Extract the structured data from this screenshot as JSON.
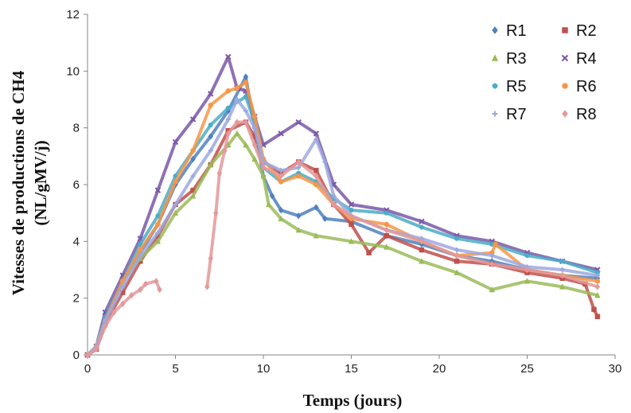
{
  "chart_data": {
    "type": "scatter",
    "xlabel": "Temps (jours)",
    "ylabel": "Vitesses de productions de CH4",
    "ylabel_unit": "(NL/gMV/j)",
    "xlim": [
      0,
      30
    ],
    "ylim": [
      0,
      12
    ],
    "xticks": [
      "0",
      "5",
      "10",
      "15",
      "20",
      "25",
      "30"
    ],
    "yticks": [
      "0",
      "2",
      "4",
      "6",
      "8",
      "10",
      "12"
    ],
    "grid": false,
    "legend_position": "top-right",
    "legend_columns": 2,
    "series": [
      {
        "name": "R1",
        "color": "#4f81bd",
        "marker": "diamond",
        "points": [
          [
            0,
            0
          ],
          [
            0.5,
            0.3
          ],
          [
            1,
            1.2
          ],
          [
            2,
            2.6
          ],
          [
            3,
            3.6
          ],
          [
            4,
            4.6
          ],
          [
            5,
            6
          ],
          [
            6,
            6.9
          ],
          [
            7,
            7.7
          ],
          [
            8,
            8.6
          ],
          [
            9,
            9.8
          ],
          [
            9.5,
            8
          ],
          [
            10,
            6.3
          ],
          [
            10.5,
            5.6
          ],
          [
            11,
            5.1
          ],
          [
            12,
            4.9
          ],
          [
            13,
            5.2
          ],
          [
            13.5,
            4.8
          ],
          [
            15,
            4.7
          ],
          [
            17,
            4.2
          ],
          [
            19,
            3.9
          ],
          [
            21,
            3.5
          ],
          [
            23,
            3.3
          ],
          [
            25,
            3
          ],
          [
            27,
            2.8
          ],
          [
            29,
            2.7
          ]
        ]
      },
      {
        "name": "R2",
        "color": "#c0504d",
        "marker": "square",
        "points": [
          [
            0,
            0
          ],
          [
            0.5,
            0.2
          ],
          [
            1,
            1.1
          ],
          [
            2,
            2.2
          ],
          [
            3,
            3.3
          ],
          [
            4,
            4.2
          ],
          [
            5,
            5.3
          ],
          [
            6,
            5.8
          ],
          [
            7,
            6.7
          ],
          [
            8,
            7.9
          ],
          [
            9,
            8.2
          ],
          [
            9.5,
            7.7
          ],
          [
            10,
            6.8
          ],
          [
            11,
            6.4
          ],
          [
            12,
            6.8
          ],
          [
            13,
            6.5
          ],
          [
            14,
            5.3
          ],
          [
            15,
            4.6
          ],
          [
            16,
            3.6
          ],
          [
            17,
            4.2
          ],
          [
            19,
            3.7
          ],
          [
            21,
            3.3
          ],
          [
            23,
            3.2
          ],
          [
            25,
            2.9
          ],
          [
            27,
            2.7
          ],
          [
            28.3,
            2.5
          ],
          [
            28.8,
            1.6
          ],
          [
            29,
            1.35
          ]
        ]
      },
      {
        "name": "R3",
        "color": "#9bbb59",
        "marker": "triangle",
        "points": [
          [
            0,
            0
          ],
          [
            0.5,
            0.3
          ],
          [
            1,
            1.3
          ],
          [
            2,
            2.6
          ],
          [
            3,
            3.4
          ],
          [
            4,
            4
          ],
          [
            5,
            5
          ],
          [
            6,
            5.6
          ],
          [
            7,
            6.7
          ],
          [
            8,
            7.4
          ],
          [
            8.5,
            7.8
          ],
          [
            9,
            7.4
          ],
          [
            9.5,
            6.9
          ],
          [
            10,
            6.3
          ],
          [
            10.3,
            5.3
          ],
          [
            11,
            4.8
          ],
          [
            12,
            4.4
          ],
          [
            13,
            4.2
          ],
          [
            15,
            4
          ],
          [
            17,
            3.8
          ],
          [
            19,
            3.3
          ],
          [
            21,
            2.9
          ],
          [
            23,
            2.3
          ],
          [
            25,
            2.6
          ],
          [
            27,
            2.4
          ],
          [
            29,
            2.1
          ]
        ]
      },
      {
        "name": "R4",
        "color": "#7a58a8",
        "marker": "x",
        "points": [
          [
            0,
            0
          ],
          [
            0.5,
            0.3
          ],
          [
            1,
            1.5
          ],
          [
            2,
            2.8
          ],
          [
            3,
            4.1
          ],
          [
            4,
            5.8
          ],
          [
            5,
            7.5
          ],
          [
            6,
            8.3
          ],
          [
            7,
            9.2
          ],
          [
            8,
            10.5
          ],
          [
            8.5,
            9.4
          ],
          [
            9,
            9.3
          ],
          [
            9.5,
            8.4
          ],
          [
            10,
            7.4
          ],
          [
            11,
            7.8
          ],
          [
            12,
            8.2
          ],
          [
            13,
            7.8
          ],
          [
            14,
            6
          ],
          [
            15,
            5.3
          ],
          [
            17,
            5.1
          ],
          [
            19,
            4.7
          ],
          [
            21,
            4.2
          ],
          [
            23,
            4
          ],
          [
            25,
            3.6
          ],
          [
            27,
            3.3
          ],
          [
            29,
            3
          ]
        ]
      },
      {
        "name": "R5",
        "color": "#4bacc6",
        "marker": "star",
        "points": [
          [
            0,
            0
          ],
          [
            0.5,
            0.3
          ],
          [
            1,
            1.3
          ],
          [
            2,
            2.6
          ],
          [
            3,
            3.9
          ],
          [
            4,
            4.9
          ],
          [
            5,
            6.3
          ],
          [
            6,
            7.2
          ],
          [
            7,
            8.1
          ],
          [
            8,
            8.7
          ],
          [
            9,
            9.1
          ],
          [
            9.5,
            8.2
          ],
          [
            10,
            6.6
          ],
          [
            11,
            6.1
          ],
          [
            12,
            6.4
          ],
          [
            13,
            6.1
          ],
          [
            14,
            5.5
          ],
          [
            15,
            5.1
          ],
          [
            17,
            5
          ],
          [
            19,
            4.5
          ],
          [
            21,
            4.1
          ],
          [
            23,
            3.9
          ],
          [
            25,
            3.5
          ],
          [
            27,
            3.3
          ],
          [
            29,
            2.9
          ]
        ]
      },
      {
        "name": "R6",
        "color": "#f79646",
        "marker": "circle",
        "points": [
          [
            0,
            0
          ],
          [
            0.5,
            0.3
          ],
          [
            1,
            1.2
          ],
          [
            2,
            2.6
          ],
          [
            3,
            3.7
          ],
          [
            4,
            4.6
          ],
          [
            5,
            6.1
          ],
          [
            6,
            7.2
          ],
          [
            7,
            8.8
          ],
          [
            8,
            9.3
          ],
          [
            8.5,
            9.4
          ],
          [
            9,
            9.6
          ],
          [
            9.5,
            8.4
          ],
          [
            10,
            6.9
          ],
          [
            11,
            6.1
          ],
          [
            12,
            6.3
          ],
          [
            13,
            6
          ],
          [
            14,
            5.3
          ],
          [
            15,
            4.8
          ],
          [
            17,
            4.6
          ],
          [
            19,
            4
          ],
          [
            21,
            3.5
          ],
          [
            23,
            3.6
          ],
          [
            23.2,
            3.9
          ],
          [
            25,
            3
          ],
          [
            27,
            2.8
          ],
          [
            29,
            2.6
          ]
        ]
      },
      {
        "name": "R7",
        "color": "#9ca9e0",
        "marker": "plus",
        "points": [
          [
            0,
            0
          ],
          [
            0.5,
            0.3
          ],
          [
            1,
            1.2
          ],
          [
            2,
            2.4
          ],
          [
            3,
            3.5
          ],
          [
            4,
            4.3
          ],
          [
            5,
            5.3
          ],
          [
            6,
            6.3
          ],
          [
            7,
            7.2
          ],
          [
            8,
            8.3
          ],
          [
            8.5,
            9
          ],
          [
            9,
            8.6
          ],
          [
            9.5,
            8
          ],
          [
            10,
            6.8
          ],
          [
            11,
            6.5
          ],
          [
            12,
            6.6
          ],
          [
            13,
            7.6
          ],
          [
            13.5,
            6.8
          ],
          [
            14,
            5.6
          ],
          [
            15,
            4.9
          ],
          [
            17,
            4.4
          ],
          [
            19,
            4.1
          ],
          [
            21,
            3.7
          ],
          [
            23,
            3.5
          ],
          [
            25,
            3.1
          ],
          [
            27,
            3
          ],
          [
            29,
            2.8
          ]
        ]
      },
      {
        "name": "R8",
        "color": "#e3999a",
        "marker": "diamond",
        "points": [
          [
            0,
            0
          ],
          [
            0.5,
            0.2
          ],
          [
            1,
            1
          ],
          [
            1.5,
            1.5
          ],
          [
            2,
            1.8
          ],
          [
            2.5,
            2.1
          ],
          [
            3,
            2.3
          ],
          [
            3.3,
            2.5
          ],
          [
            3.9,
            2.6
          ],
          [
            4.1,
            2.3
          ],
          [
            6.8,
            2.4
          ],
          [
            7,
            3.4
          ],
          [
            7.3,
            5
          ],
          [
            7.5,
            6.4
          ],
          [
            7.8,
            7.2
          ],
          [
            8,
            7.8
          ],
          [
            8.5,
            8.2
          ],
          [
            9,
            8.2
          ],
          [
            9.5,
            7.4
          ],
          [
            10,
            6.6
          ],
          [
            11,
            6.3
          ],
          [
            12,
            6.8
          ],
          [
            13,
            6.3
          ],
          [
            14,
            5.3
          ],
          [
            15,
            4.9
          ],
          [
            17,
            4.4
          ],
          [
            19,
            4
          ],
          [
            21,
            3.5
          ],
          [
            23,
            3.2
          ],
          [
            25,
            3
          ],
          [
            27,
            2.8
          ],
          [
            29,
            2.4
          ]
        ]
      }
    ]
  }
}
